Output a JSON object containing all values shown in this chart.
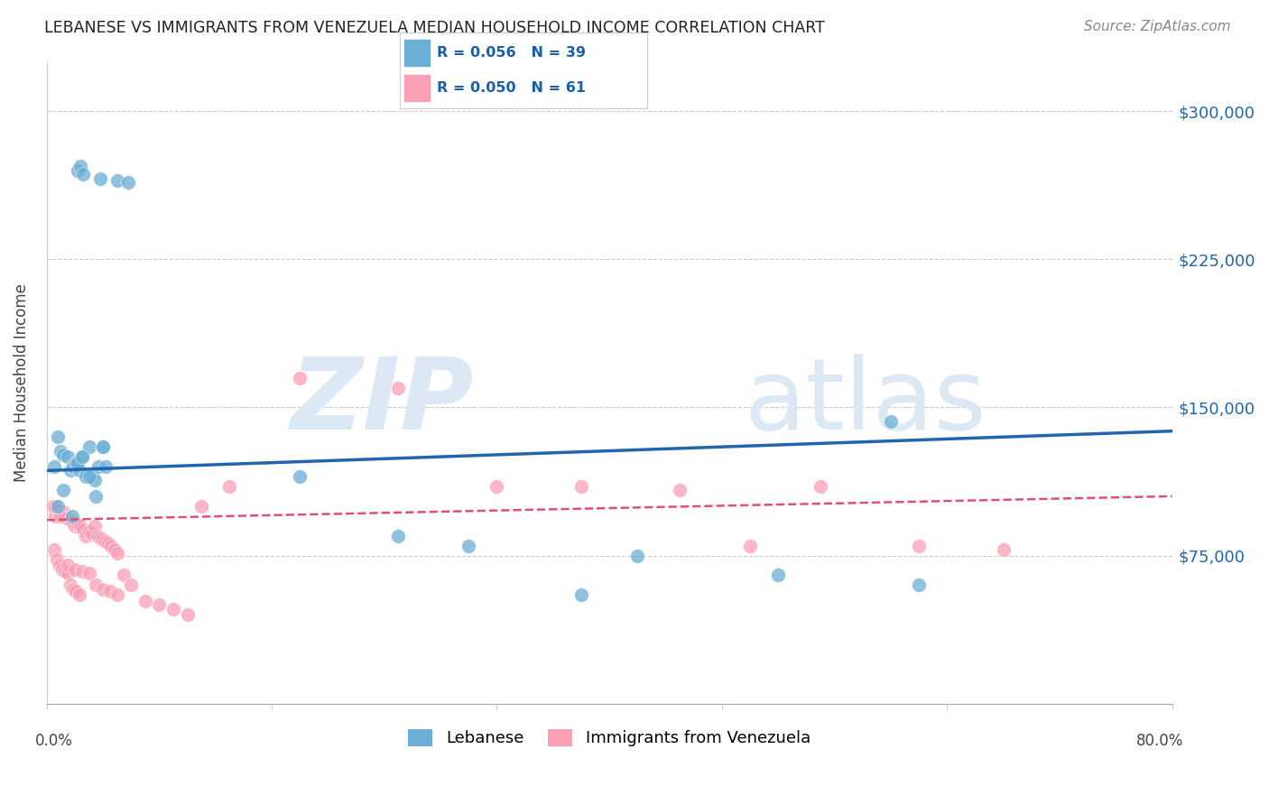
{
  "title": "LEBANESE VS IMMIGRANTS FROM VENEZUELA MEDIAN HOUSEHOLD INCOME CORRELATION CHART",
  "source": "Source: ZipAtlas.com",
  "ylabel": "Median Household Income",
  "yticks": [
    0,
    75000,
    150000,
    225000,
    300000
  ],
  "ytick_labels": [
    "",
    "$75,000",
    "$150,000",
    "$225,000",
    "$300,000"
  ],
  "xlim": [
    0.0,
    0.8
  ],
  "ylim": [
    0,
    325000
  ],
  "legend1_label": "Lebanese",
  "legend2_label": "Immigrants from Venezuela",
  "R1": 0.056,
  "N1": 39,
  "R2": 0.05,
  "N2": 61,
  "blue_color": "#6baed6",
  "pink_color": "#fa9fb5",
  "trendline1_color": "#2166ac",
  "trendline2_color": "#e05070",
  "watermark_color": "#dce9f5",
  "blue_scatter_x": [
    0.022,
    0.024,
    0.026,
    0.038,
    0.05,
    0.058,
    0.005,
    0.008,
    0.01,
    0.012,
    0.015,
    0.017,
    0.019,
    0.021,
    0.023,
    0.025,
    0.028,
    0.03,
    0.032,
    0.034,
    0.037,
    0.04,
    0.008,
    0.012,
    0.018,
    0.022,
    0.025,
    0.03,
    0.04,
    0.035,
    0.042,
    0.18,
    0.25,
    0.3,
    0.38,
    0.42,
    0.52,
    0.6,
    0.62
  ],
  "blue_scatter_y": [
    270000,
    272000,
    268000,
    266000,
    265000,
    264000,
    120000,
    135000,
    128000,
    126000,
    125000,
    118000,
    120000,
    122000,
    118000,
    125000,
    115000,
    130000,
    115000,
    113000,
    120000,
    130000,
    100000,
    108000,
    95000,
    122000,
    125000,
    115000,
    130000,
    105000,
    120000,
    115000,
    85000,
    80000,
    55000,
    75000,
    65000,
    143000,
    60000
  ],
  "pink_scatter_x": [
    0.004,
    0.006,
    0.008,
    0.01,
    0.012,
    0.014,
    0.016,
    0.018,
    0.02,
    0.022,
    0.024,
    0.026,
    0.028,
    0.03,
    0.032,
    0.034,
    0.036,
    0.038,
    0.04,
    0.042,
    0.044,
    0.046,
    0.048,
    0.05,
    0.005,
    0.007,
    0.009,
    0.011,
    0.013,
    0.015,
    0.017,
    0.019,
    0.021,
    0.023,
    0.006,
    0.01,
    0.015,
    0.02,
    0.025,
    0.03,
    0.035,
    0.04,
    0.045,
    0.05,
    0.055,
    0.06,
    0.07,
    0.08,
    0.09,
    0.1,
    0.11,
    0.13,
    0.18,
    0.25,
    0.32,
    0.38,
    0.45,
    0.5,
    0.55,
    0.62,
    0.68
  ],
  "pink_scatter_y": [
    100000,
    95000,
    98000,
    96000,
    97000,
    94000,
    93000,
    92000,
    90000,
    91000,
    90000,
    88000,
    85000,
    87000,
    86000,
    90000,
    85000,
    84000,
    83000,
    82000,
    81000,
    80000,
    78000,
    76000,
    78000,
    73000,
    70000,
    68000,
    67000,
    66000,
    60000,
    58000,
    57000,
    55000,
    100000,
    95000,
    70000,
    68000,
    67000,
    66000,
    60000,
    58000,
    57000,
    55000,
    65000,
    60000,
    52000,
    50000,
    48000,
    45000,
    100000,
    110000,
    165000,
    160000,
    110000,
    110000,
    108000,
    80000,
    110000,
    80000,
    78000
  ]
}
